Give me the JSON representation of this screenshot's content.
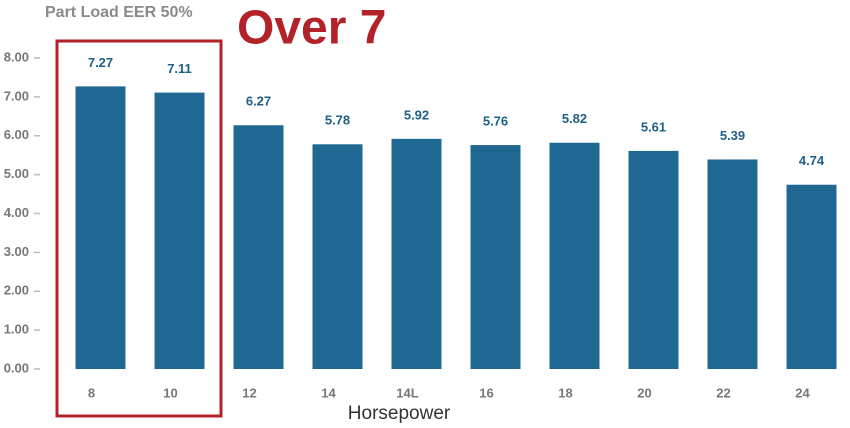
{
  "chart_data": {
    "type": "bar",
    "title": "Part Load EER 50%",
    "annotation": "Over 7",
    "x_label": "Horsepower",
    "categories": [
      "8",
      "10",
      "12",
      "14",
      "14L",
      "16",
      "18",
      "20",
      "22",
      "24"
    ],
    "values": [
      7.27,
      7.11,
      6.27,
      5.78,
      5.92,
      5.76,
      5.82,
      5.61,
      5.39,
      4.74
    ],
    "color": "#1f6891",
    "ylim": [
      0,
      8
    ],
    "yticks": [
      {
        "value": 0,
        "label": "0.00"
      },
      {
        "value": 1,
        "label": "1.00"
      },
      {
        "value": 2,
        "label": "2.00"
      },
      {
        "value": 3,
        "label": "3.00"
      },
      {
        "value": 4,
        "label": "4.00"
      },
      {
        "value": 5,
        "label": "5.00"
      },
      {
        "value": 6,
        "label": "6.00"
      },
      {
        "value": 7,
        "label": "7.00"
      },
      {
        "value": 8,
        "label": "8.00"
      }
    ],
    "grid": false
  }
}
